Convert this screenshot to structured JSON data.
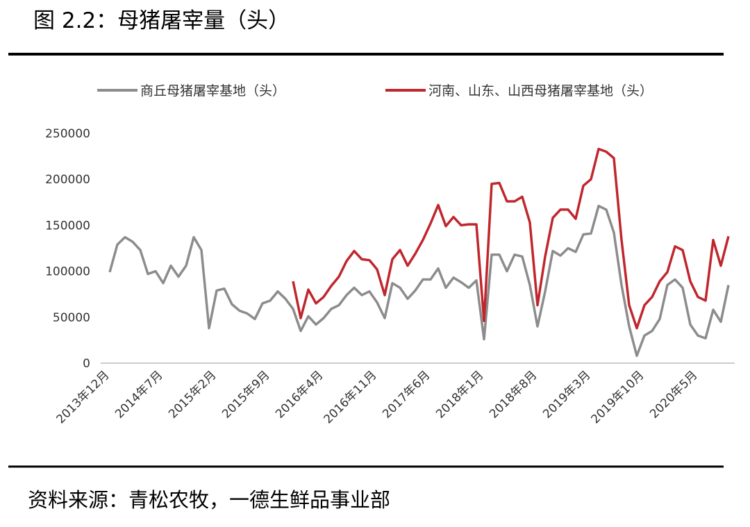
{
  "header": {
    "title": "图 2.2：母猪屠宰量（头）"
  },
  "footer": {
    "source": "资料来源：青松农牧，一德生鲜品事业部"
  },
  "chart_data": {
    "type": "line",
    "categories": [
      "2013年12月",
      null,
      null,
      null,
      null,
      null,
      null,
      "2014年7月",
      null,
      null,
      null,
      null,
      null,
      null,
      "2015年2月",
      null,
      null,
      null,
      null,
      null,
      null,
      "2015年9月",
      null,
      null,
      null,
      null,
      null,
      null,
      "2016年4月",
      null,
      null,
      null,
      null,
      null,
      null,
      "2016年11月",
      null,
      null,
      null,
      null,
      null,
      null,
      "2017年6月",
      null,
      null,
      null,
      null,
      null,
      null,
      "2018年1月",
      null,
      null,
      null,
      null,
      null,
      null,
      "2018年8月",
      null,
      null,
      null,
      null,
      null,
      null,
      "2019年3月",
      null,
      null,
      null,
      null,
      null,
      null,
      "2019年10月",
      null,
      null,
      null,
      null,
      null,
      null,
      "2020年5月",
      null,
      null,
      null,
      null
    ],
    "series": [
      {
        "name": "商丘母猪屠宰基地（头）",
        "color": "#8c8c8c",
        "values": [
          99000,
          129000,
          137000,
          132000,
          123000,
          97000,
          100000,
          87000,
          106000,
          94000,
          106000,
          137000,
          123000,
          38000,
          79000,
          81000,
          64000,
          57000,
          54000,
          48000,
          65000,
          68000,
          78000,
          70000,
          59000,
          35000,
          51000,
          42000,
          49000,
          59000,
          63000,
          74000,
          82000,
          74000,
          78000,
          66000,
          49000,
          87000,
          82000,
          70000,
          79000,
          91000,
          91000,
          103000,
          82000,
          93000,
          88000,
          82000,
          90000,
          26000,
          118000,
          118000,
          100000,
          118000,
          116000,
          85000,
          40000,
          78000,
          122000,
          117000,
          125000,
          121000,
          140000,
          141000,
          171000,
          167000,
          142000,
          85000,
          40000,
          8000,
          30000,
          35000,
          48000,
          85000,
          91000,
          82000,
          42000,
          30000,
          27000,
          58000,
          45000,
          85000
        ]
      },
      {
        "name": "河南、山东、山西母猪屠宰基地（头）",
        "color": "#c0262d",
        "values": [
          null,
          null,
          null,
          null,
          null,
          null,
          null,
          null,
          null,
          null,
          null,
          null,
          null,
          null,
          null,
          null,
          null,
          null,
          null,
          null,
          null,
          null,
          null,
          null,
          89000,
          49000,
          80000,
          65000,
          72000,
          84000,
          94000,
          111000,
          122000,
          113000,
          112000,
          102000,
          74000,
          113000,
          123000,
          106000,
          119000,
          134000,
          152000,
          172000,
          149000,
          159000,
          150000,
          151000,
          151000,
          46000,
          195000,
          196000,
          176000,
          176000,
          181000,
          153000,
          63000,
          116000,
          158000,
          167000,
          167000,
          157000,
          193000,
          200000,
          233000,
          230000,
          223000,
          134000,
          63000,
          38000,
          63000,
          72000,
          89000,
          99000,
          127000,
          123000,
          89000,
          72000,
          68000,
          134000,
          106000,
          138000
        ]
      }
    ],
    "ylim": [
      0,
      250000
    ],
    "yticks": [
      0,
      50000,
      100000,
      150000,
      200000,
      250000
    ],
    "grid": false,
    "legend": "top"
  }
}
